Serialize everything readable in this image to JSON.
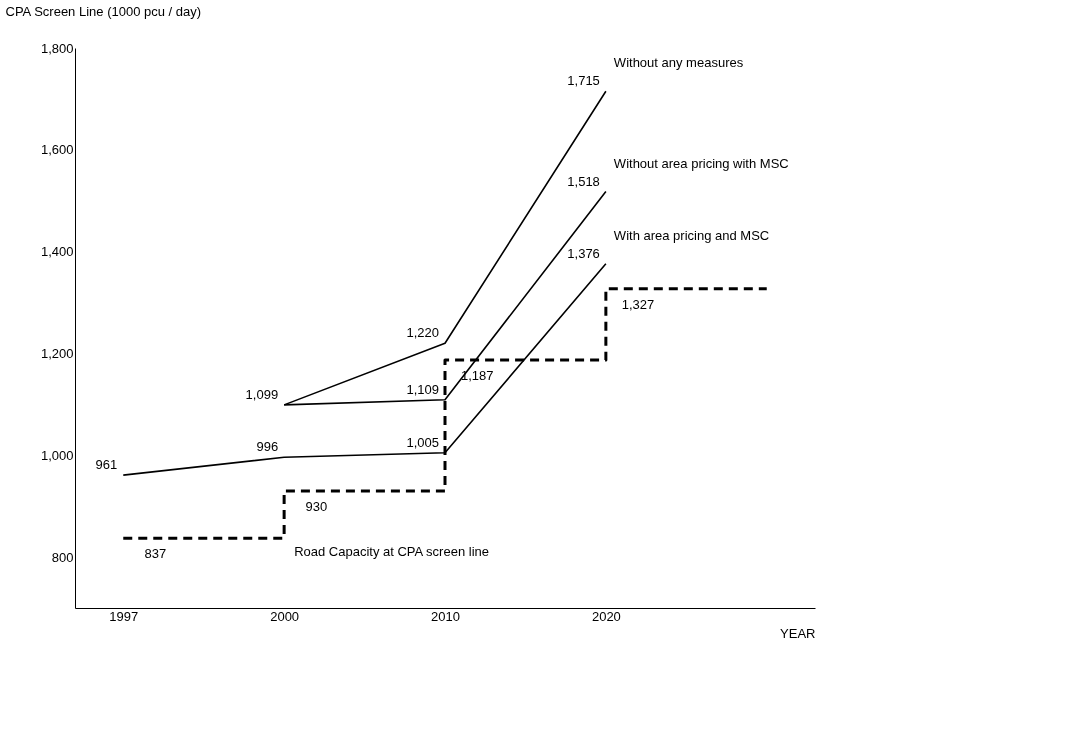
{
  "chart_data": {
    "type": "line",
    "ylabel": "CPA Screen Line (1000 pcu / day)",
    "xlabel": "YEAR",
    "categories": [
      "1997",
      "2000",
      "2010",
      "2020",
      null
    ],
    "ylim": [
      700,
      1800
    ],
    "yticks": [
      {
        "value": 800,
        "label": "800"
      },
      {
        "value": 1000,
        "label": "1,000"
      },
      {
        "value": 1200,
        "label": "1,200"
      },
      {
        "value": 1400,
        "label": "1,400"
      },
      {
        "value": 1600,
        "label": "1,600"
      },
      {
        "value": 1800,
        "label": "1,800"
      }
    ],
    "grid": false,
    "marker": "none",
    "series": [
      {
        "name": "Without any measures",
        "color": "#000000",
        "values": [
          null,
          1099,
          1220,
          1715,
          null
        ],
        "value_labels": [
          null,
          "1,099",
          "1,220",
          "1,715",
          null
        ]
      },
      {
        "name": "Without area pricing with MSC",
        "color": "#000000",
        "values": [
          null,
          1099,
          1109,
          1518,
          null
        ],
        "value_labels": [
          null,
          null,
          "1,109",
          "1,518",
          null
        ]
      },
      {
        "name": "With area pricing and MSC",
        "color": "#000000",
        "values": [
          961,
          996,
          1005,
          1376,
          null
        ],
        "value_labels": [
          "961",
          "996",
          "1,005",
          "1,376",
          null
        ]
      },
      {
        "name": "Road Capacity at CPA screen line",
        "type": "step",
        "line_style": "dashed",
        "color": "#000000",
        "values": [
          837,
          930,
          1187,
          1327,
          1327
        ],
        "value_labels": [
          "837",
          "930",
          "1,187",
          "1,327",
          null
        ]
      }
    ]
  }
}
